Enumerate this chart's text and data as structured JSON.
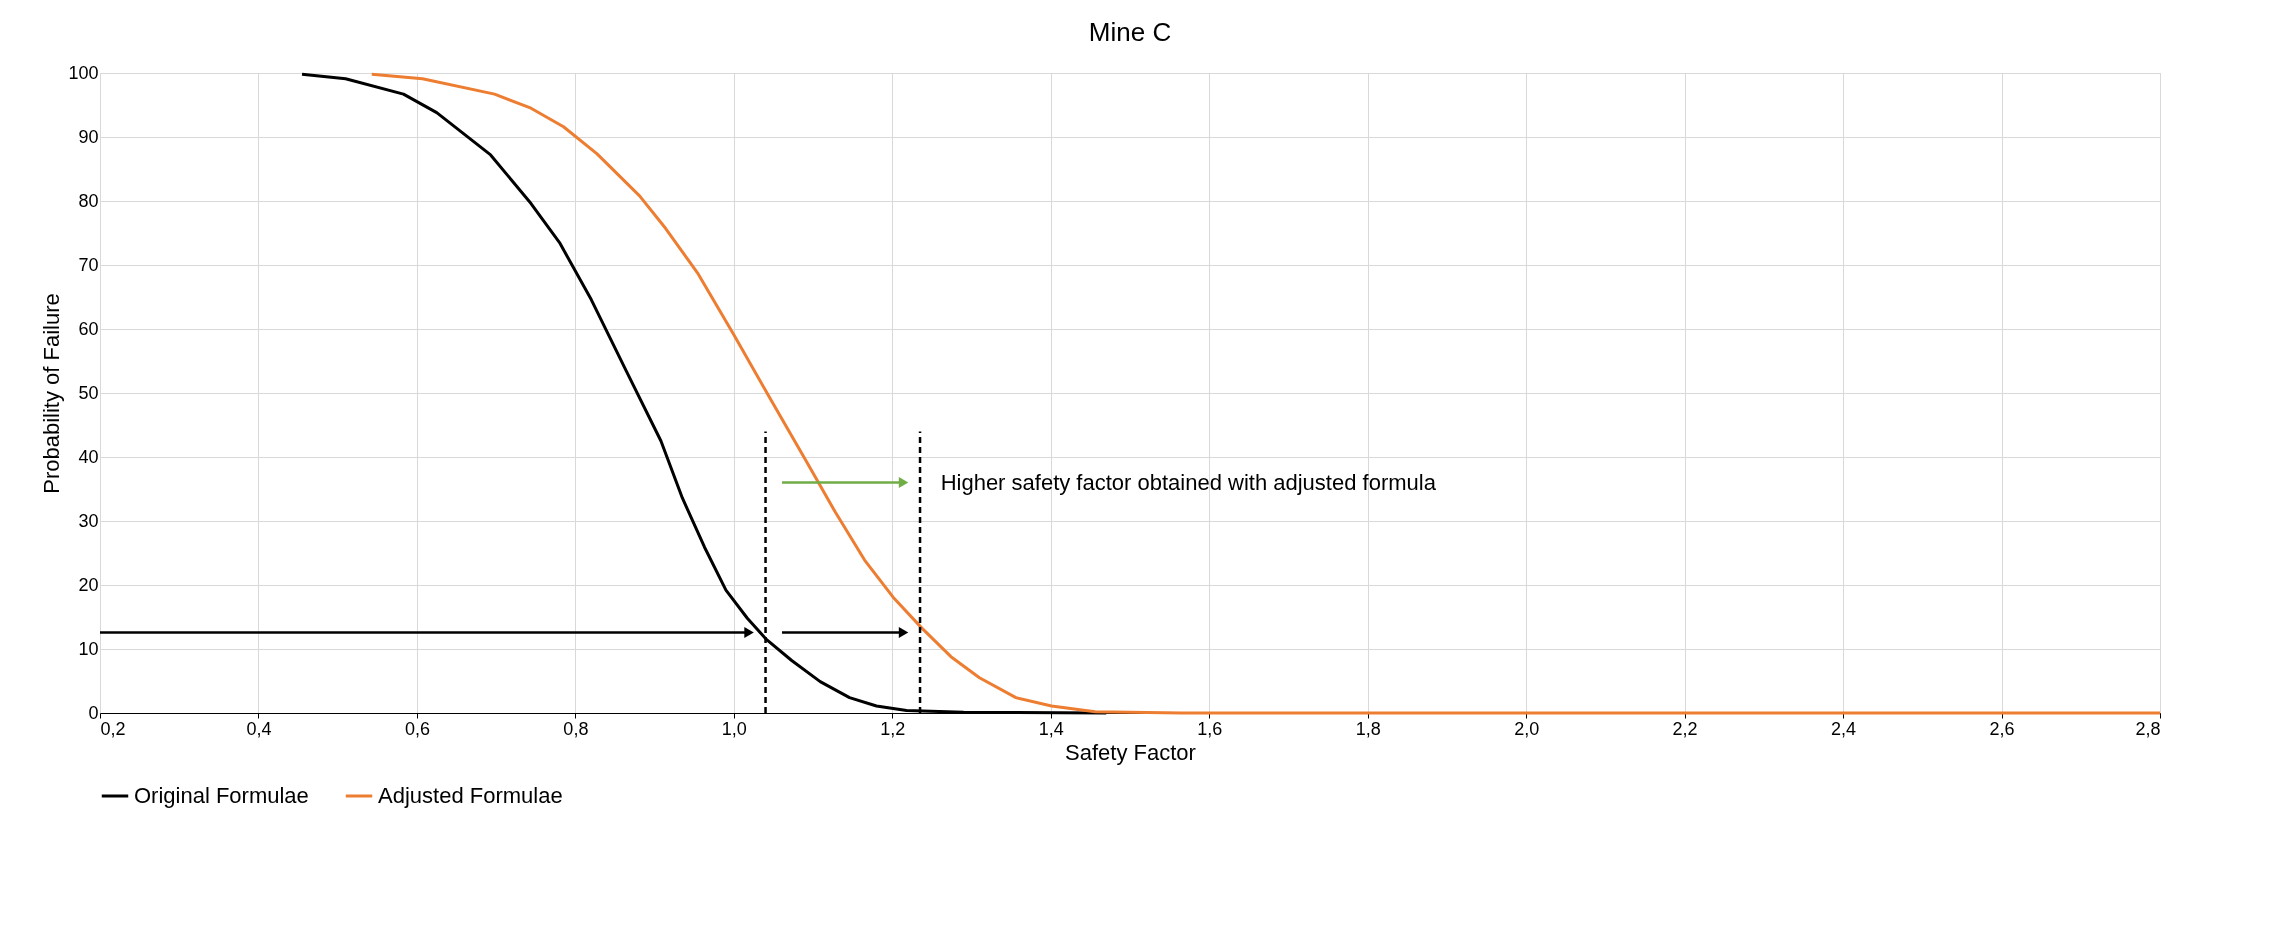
{
  "chart_data": {
    "type": "line",
    "title": "Mine C",
    "xlabel": "Safety Factor",
    "ylabel": "Probability of Failure",
    "xlim": [
      0.2,
      2.8
    ],
    "ylim": [
      0,
      100
    ],
    "xticks": [
      {
        "value": 0.2,
        "label": "0,2"
      },
      {
        "value": 0.4,
        "label": "0,4"
      },
      {
        "value": 0.6,
        "label": "0,6"
      },
      {
        "value": 0.8,
        "label": "0,8"
      },
      {
        "value": 1.0,
        "label": "1,0"
      },
      {
        "value": 1.2,
        "label": "1,2"
      },
      {
        "value": 1.4,
        "label": "1,4"
      },
      {
        "value": 1.6,
        "label": "1,6"
      },
      {
        "value": 1.8,
        "label": "1,8"
      },
      {
        "value": 2.0,
        "label": "2,0"
      },
      {
        "value": 2.2,
        "label": "2,2"
      },
      {
        "value": 2.4,
        "label": "2,4"
      },
      {
        "value": 2.6,
        "label": "2,6"
      },
      {
        "value": 2.8,
        "label": "2,8"
      }
    ],
    "yticks": [
      0,
      10,
      20,
      30,
      40,
      50,
      60,
      70,
      80,
      90,
      100
    ],
    "grid": true,
    "legend": "bottom",
    "marker": "none",
    "line_style": "solid",
    "series": [
      {
        "name": "Original Formulae",
        "color": "#000000",
        "x": [
          0.455,
          0.51,
          0.583,
          0.625,
          0.693,
          0.744,
          0.78,
          0.82,
          0.864,
          0.908,
          0.935,
          0.963,
          0.99,
          1.017,
          1.041,
          1.073,
          1.109,
          1.146,
          1.18,
          1.218,
          1.29,
          1.47
        ],
        "values": [
          99.8,
          99.1,
          96.7,
          93.8,
          87.2,
          79.6,
          73.5,
          64.6,
          53.5,
          42.5,
          33.6,
          25.9,
          19.2,
          14.8,
          11.5,
          8.2,
          4.9,
          2.4,
          1.1,
          0.4,
          0.1,
          0
        ]
      },
      {
        "name": "Adjusted Formulae",
        "color": "#ed7d31",
        "x": [
          0.543,
          0.607,
          0.698,
          0.744,
          0.785,
          0.827,
          0.881,
          0.914,
          0.955,
          1.0,
          1.046,
          1.092,
          1.128,
          1.165,
          1.201,
          1.237,
          1.274,
          1.31,
          1.356,
          1.401,
          1.456,
          1.565,
          2.8
        ],
        "values": [
          99.8,
          99.1,
          96.7,
          94.5,
          91.6,
          87.4,
          80.8,
          75.7,
          68.6,
          59.1,
          49.1,
          39.2,
          31.4,
          23.9,
          18.1,
          13.3,
          8.8,
          5.5,
          2.4,
          1.1,
          0.2,
          0,
          0
        ]
      }
    ],
    "ref_lines": [
      {
        "axis": "x",
        "value": 1.04,
        "line_style": "dashed"
      },
      {
        "axis": "x",
        "value": 1.235,
        "line_style": "dashed"
      }
    ],
    "annotations": [
      "Higher safety factor obtained with adjusted formula"
    ]
  }
}
